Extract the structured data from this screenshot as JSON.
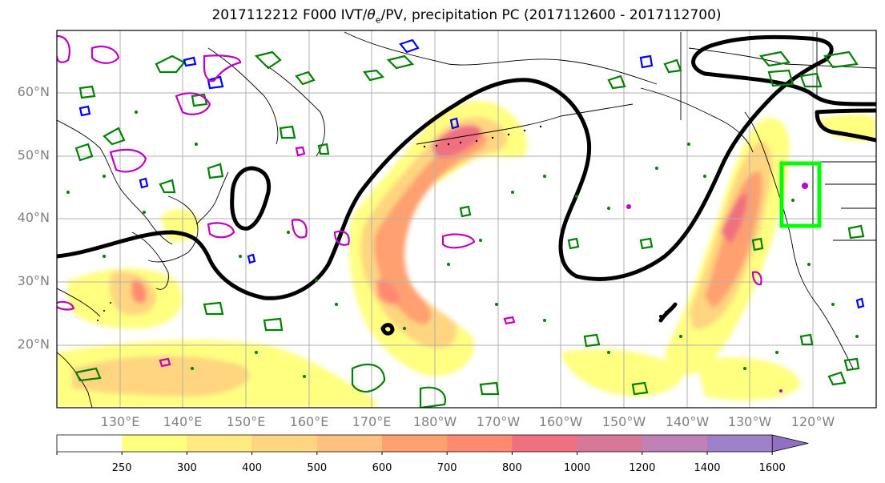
{
  "title": {
    "prefix": "2017112212 F000 IVT/",
    "theta": "θ",
    "sub": "e",
    "suffix": "/PV, precipitation PC (2017112600 - 2017112700)"
  },
  "map": {
    "lat_labels": [
      "60°N",
      "50°N",
      "40°N",
      "30°N",
      "20°N"
    ],
    "lon_labels": [
      "130°E",
      "140°E",
      "150°E",
      "160°E",
      "170°E",
      "180°W",
      "170°W",
      "160°W",
      "150°W",
      "140°W",
      "130°W",
      "120°W"
    ],
    "ivt_fill_colors": [
      "#ffff80",
      "#ffeb80",
      "#ffd580",
      "#ffbf80",
      "#ffa070",
      "#ff8a70",
      "#f07080",
      "#d87898",
      "#c080b8",
      "#a080c8"
    ],
    "contours": {
      "theta_e_color": "#000000",
      "pv_positive_color": "#008000",
      "pv_negative_color": "#0000ff",
      "magenta_color": "#c000c0"
    },
    "target_box_color": "#00ff00"
  },
  "colorbar": {
    "ticks": [
      "250",
      "300",
      "400",
      "500",
      "600",
      "700",
      "800",
      "1000",
      "1200",
      "1400",
      "1600"
    ],
    "colors": [
      "#ffffff",
      "#ffff80",
      "#ffeb80",
      "#ffd580",
      "#ffbf80",
      "#ffa070",
      "#ff8a70",
      "#f07080",
      "#d87898",
      "#c080b8",
      "#a080c8",
      "#9070c0"
    ]
  }
}
